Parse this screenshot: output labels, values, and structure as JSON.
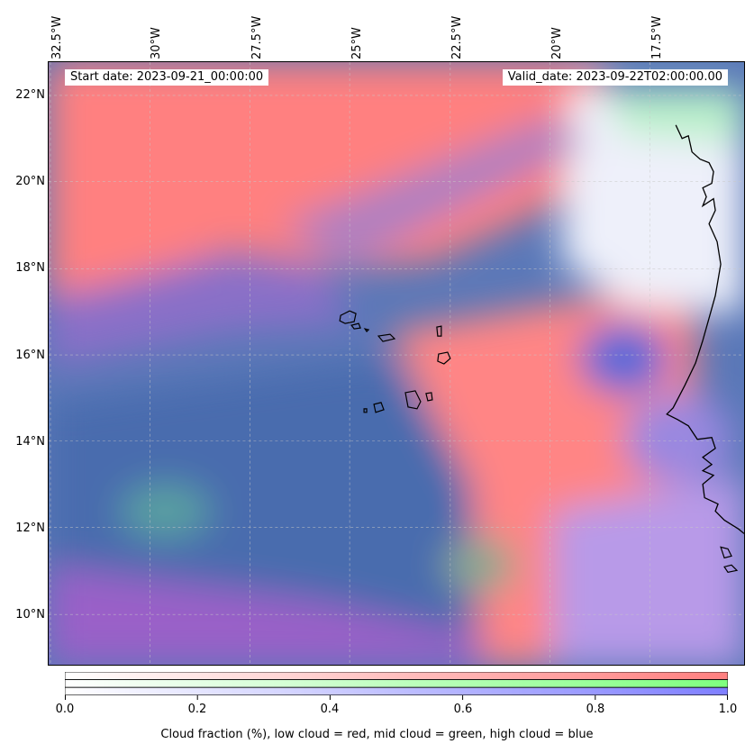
{
  "map": {
    "start_date": "Start date: 2023-09-21_00:00:00",
    "valid_date": "Valid_date: 2023-09-22T02:00:00.00",
    "lon_labels": [
      "32.5°W",
      "30°W",
      "27.5°W",
      "25°W",
      "22.5°W",
      "20°W",
      "17.5°W"
    ],
    "lat_labels": [
      "22°N",
      "20°N",
      "18°N",
      "16°N",
      "14°N",
      "12°N",
      "10°N"
    ],
    "colors": {
      "low_cloud": "#ff7f7f",
      "mid_cloud": "#7fff7f",
      "high_cloud": "#7f7fff",
      "ocean_base": "#4f7bb8",
      "coastline": "#000000"
    }
  },
  "colorbar": {
    "ticks": [
      "0.0",
      "0.2",
      "0.4",
      "0.6",
      "0.8",
      "1.0"
    ],
    "label": "Cloud fraction (%), low cloud = red, mid cloud = green, high cloud = blue"
  }
}
